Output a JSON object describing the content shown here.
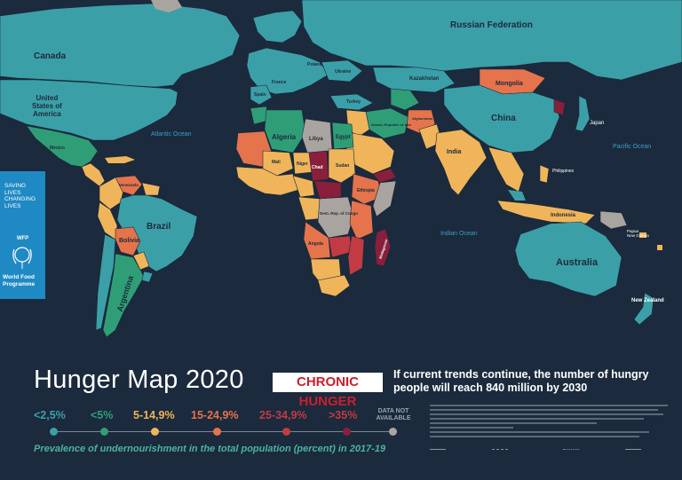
{
  "map": {
    "title": "Hunger Map 2020",
    "badge": "CHRONIC HUNGER",
    "headline": "If current trends continue, the number of hungry\npeople will reach 840 million by 2030",
    "caption": "Prevalence of undernourishment in the total population (percent) in 2017-19",
    "colors": {
      "background": "#1b2a3c",
      "lt2_5": "#3b9fa8",
      "lt5": "#2f9e77",
      "c5_14_9": "#f0b55a",
      "c15_24_9": "#e5734c",
      "c25_34_9": "#c23b43",
      "gt35": "#8a1f3b",
      "no_data": "#aaa4a0"
    },
    "legend": [
      {
        "label": "<2,5%",
        "color": "#3b9fa8"
      },
      {
        "label": "<5%",
        "color": "#2f9e77"
      },
      {
        "label": "5-14,9%",
        "color": "#f0b55a"
      },
      {
        "label": "15-24,9%",
        "color": "#e5734c"
      },
      {
        "label": "25-34,9%",
        "color": "#c23b43"
      },
      {
        "label": ">35%",
        "color": "#8a1f3b"
      },
      {
        "label": "DATA NOT\nAVAILABLE",
        "color": "#aaa4a0"
      }
    ],
    "oceans": {
      "atlantic": "Atlantic Ocean",
      "pacific": "Pacific Ocean",
      "indian": "Indian Ocean"
    },
    "countries": {
      "canada": "Canada",
      "usa": "United\nStates of\nAmerica",
      "russia": "Russian Federation",
      "china": "China",
      "mongolia": "Mongolia",
      "kazakhstan": "Kazakhstan",
      "brazil": "Brazil",
      "argentina": "Argentina",
      "bolivia": "Bolivia",
      "australia": "Australia",
      "new_zealand": "New Zealand",
      "india": "India",
      "algeria": "Algeria",
      "libya": "Libya",
      "egypt": "Egypt",
      "chad": "Chad",
      "angola": "Angola",
      "madagascar": "Madagascar",
      "indonesia": "Indonesia",
      "japan": "Japan",
      "afghanistan": "Afghanistan",
      "iran": "Islamic Republic of Iran",
      "ethiopia": "Ethiopia",
      "mali": "Mali",
      "niger": "Niger",
      "sudan": "Sudan",
      "drc": "Dem. Rep. of Congo",
      "venezuela": "Venezuela",
      "papua_new_guinea": "Papua\nNew Guinea",
      "mexico": "Mexico",
      "philippines": "Philippines",
      "turkey": "Turkey",
      "ukraine": "Ukraine",
      "poland": "Poland",
      "france": "France",
      "spain": "Spain"
    }
  },
  "sidebar": {
    "tagline": "SAVING\nLIVES\nCHANGING\nLIVES",
    "logo_text": "WFP",
    "org_name": "World Food\nProgramme"
  }
}
